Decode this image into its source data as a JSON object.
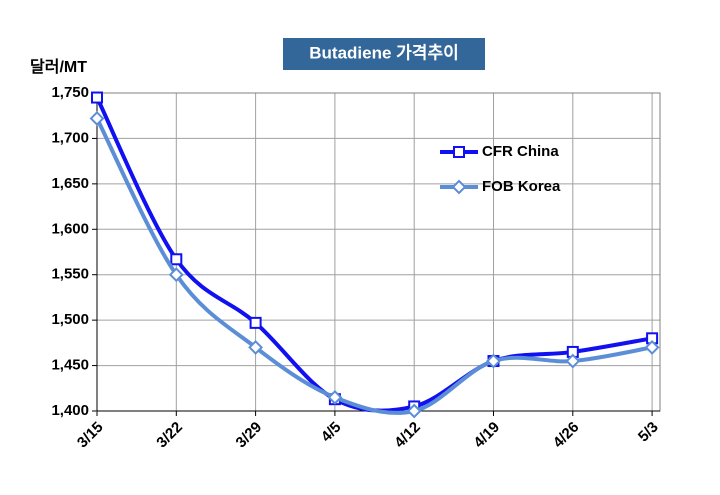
{
  "chart_data": {
    "type": "line",
    "title": "Butadiene 가격추이",
    "y_label": "달러/MT",
    "categories": [
      "3/15",
      "3/22",
      "3/29",
      "4/5",
      "4/12",
      "4/19",
      "4/26",
      "5/3"
    ],
    "series": [
      {
        "name": "CFR China",
        "color": "#1010f0",
        "marker": "square",
        "values": [
          1745,
          1567,
          1497,
          1413,
          1405,
          1455,
          1465,
          1480
        ]
      },
      {
        "name": "FOB Korea",
        "color": "#5b8ed6",
        "marker": "diamond",
        "values": [
          1722,
          1550,
          1470,
          1415,
          1400,
          1455,
          1455,
          1470
        ]
      }
    ],
    "ylim": [
      1400,
      1750
    ],
    "yticks": [
      {
        "value": 1400,
        "label": "1,400"
      },
      {
        "value": 1450,
        "label": "1,450"
      },
      {
        "value": 1500,
        "label": "1,500"
      },
      {
        "value": 1550,
        "label": "1,550"
      },
      {
        "value": 1600,
        "label": "1,600"
      },
      {
        "value": 1650,
        "label": "1,650"
      },
      {
        "value": 1700,
        "label": "1,700"
      },
      {
        "value": 1750,
        "label": "1,750"
      }
    ],
    "grid": true
  }
}
